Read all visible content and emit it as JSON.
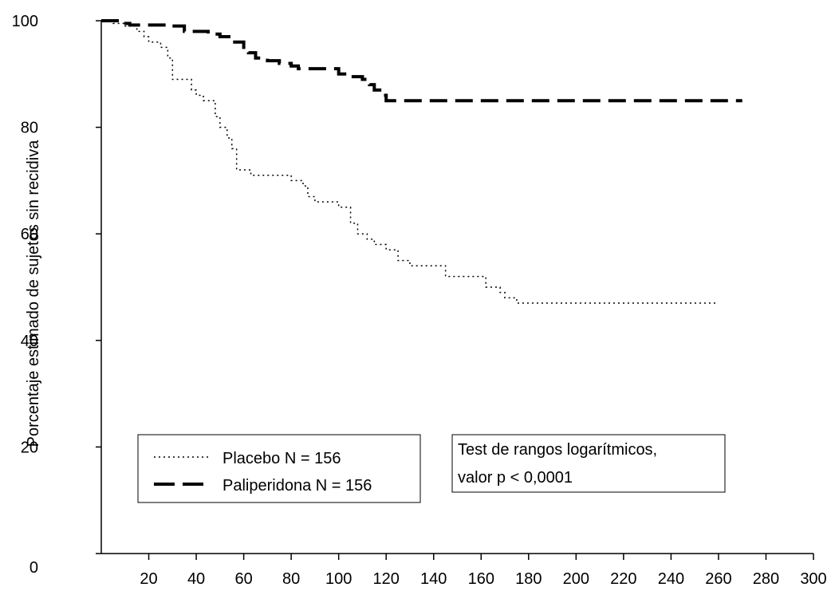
{
  "chart_data": {
    "type": "line",
    "title": "",
    "xlabel": "",
    "ylabel": "Porcentaje estimado de sujetos sin recidiva",
    "xlim": [
      0,
      300
    ],
    "ylim": [
      0,
      100
    ],
    "x_ticks": [
      "20",
      "40",
      "60",
      "80",
      "100",
      "120",
      "140",
      "160",
      "180",
      "200",
      "220",
      "240",
      "260",
      "280",
      "300"
    ],
    "y_ticks": [
      "0",
      "20",
      "40",
      "60",
      "80",
      "100"
    ],
    "grid": false,
    "legend_position": "bottom-left",
    "series": [
      {
        "name": "Placebo N = 156",
        "style": "dotted",
        "color": "#000000",
        "x": [
          0,
          5,
          10,
          15,
          18,
          20,
          25,
          28,
          30,
          35,
          38,
          40,
          43,
          45,
          48,
          50,
          53,
          55,
          57,
          60,
          63,
          68,
          80,
          85,
          87,
          90,
          95,
          100,
          105,
          108,
          112,
          115,
          120,
          125,
          130,
          140,
          145,
          150,
          158,
          162,
          168,
          170,
          175,
          260
        ],
        "y": [
          100,
          99.5,
          99,
          98,
          97,
          96,
          95,
          93,
          89,
          89,
          87,
          86,
          85,
          85,
          82,
          80,
          78,
          76,
          72,
          72,
          71,
          71,
          70,
          69,
          67,
          66,
          66,
          65,
          62,
          60,
          59,
          58,
          57,
          55,
          54,
          54,
          52,
          52,
          52,
          50,
          49,
          48,
          47,
          47
        ]
      },
      {
        "name": "Paliperidona N = 156",
        "style": "dashed",
        "color": "#000000",
        "x": [
          0,
          8,
          12,
          30,
          35,
          45,
          50,
          55,
          60,
          62,
          65,
          70,
          75,
          80,
          83,
          100,
          105,
          110,
          113,
          115,
          118,
          120,
          270
        ],
        "y": [
          100,
          99.5,
          99.2,
          99,
          98,
          97.5,
          97,
          96,
          95,
          94,
          93,
          92.5,
          92,
          91.5,
          91,
          90,
          89.5,
          89,
          88,
          87,
          86,
          85,
          85
        ]
      }
    ],
    "annotation": [
      "Test de rangos logarítmicos,",
      "valor p < 0,0001"
    ]
  }
}
